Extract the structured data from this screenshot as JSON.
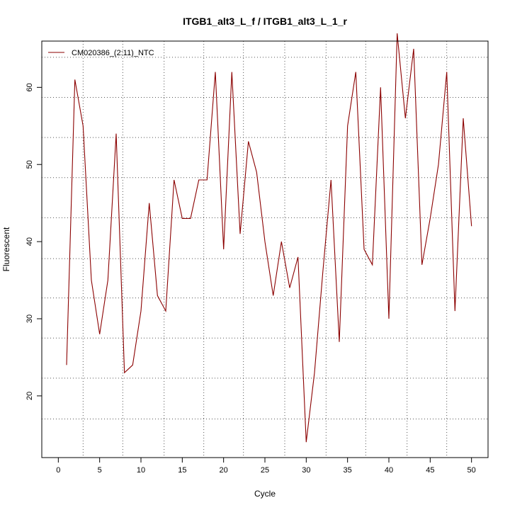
{
  "chart_data": {
    "type": "line",
    "title": "ITGB1_alt3_L_f / ITGB1_alt3_L_1_r",
    "xlabel": "Cycle",
    "ylabel": "Fluorescent",
    "xlim": [
      -2,
      52
    ],
    "ylim": [
      12,
      66
    ],
    "x_ticks": [
      0,
      5,
      10,
      15,
      20,
      25,
      30,
      35,
      40,
      45,
      50
    ],
    "y_ticks": [
      20,
      30,
      40,
      50,
      60
    ],
    "grid": true,
    "grid_x": [
      3,
      7.8,
      12.8,
      17.6,
      22.4,
      27.4,
      32.4,
      37.2,
      42.2,
      47
    ],
    "grid_y": [
      17,
      22.3,
      27.5,
      32.7,
      37.8,
      43.1,
      48.3,
      53.5,
      58.7,
      63.9
    ],
    "legend_position": "top-left",
    "series": [
      {
        "name": "CM020386_(2:11)_NTC",
        "color": "#8b0000",
        "x": [
          1,
          2,
          3,
          4,
          5,
          6,
          7,
          8,
          9,
          10,
          11,
          12,
          13,
          14,
          15,
          16,
          17,
          18,
          19,
          20,
          21,
          22,
          23,
          24,
          25,
          26,
          27,
          28,
          29,
          30,
          31,
          32,
          33,
          34,
          35,
          36,
          37,
          38,
          39,
          40,
          41,
          42,
          43,
          44,
          45,
          46,
          47,
          48,
          49,
          50
        ],
        "y": [
          24,
          61,
          55,
          35,
          28,
          35,
          54,
          23,
          24,
          31,
          45,
          33,
          31,
          48,
          43,
          43,
          48,
          48,
          62,
          39,
          62,
          41,
          53,
          49,
          40,
          33,
          40,
          34,
          38,
          14,
          23,
          36,
          48,
          27,
          55,
          62,
          39,
          37,
          60,
          30,
          67,
          56,
          65,
          37,
          43,
          50,
          62,
          31,
          56,
          42
        ]
      }
    ]
  }
}
